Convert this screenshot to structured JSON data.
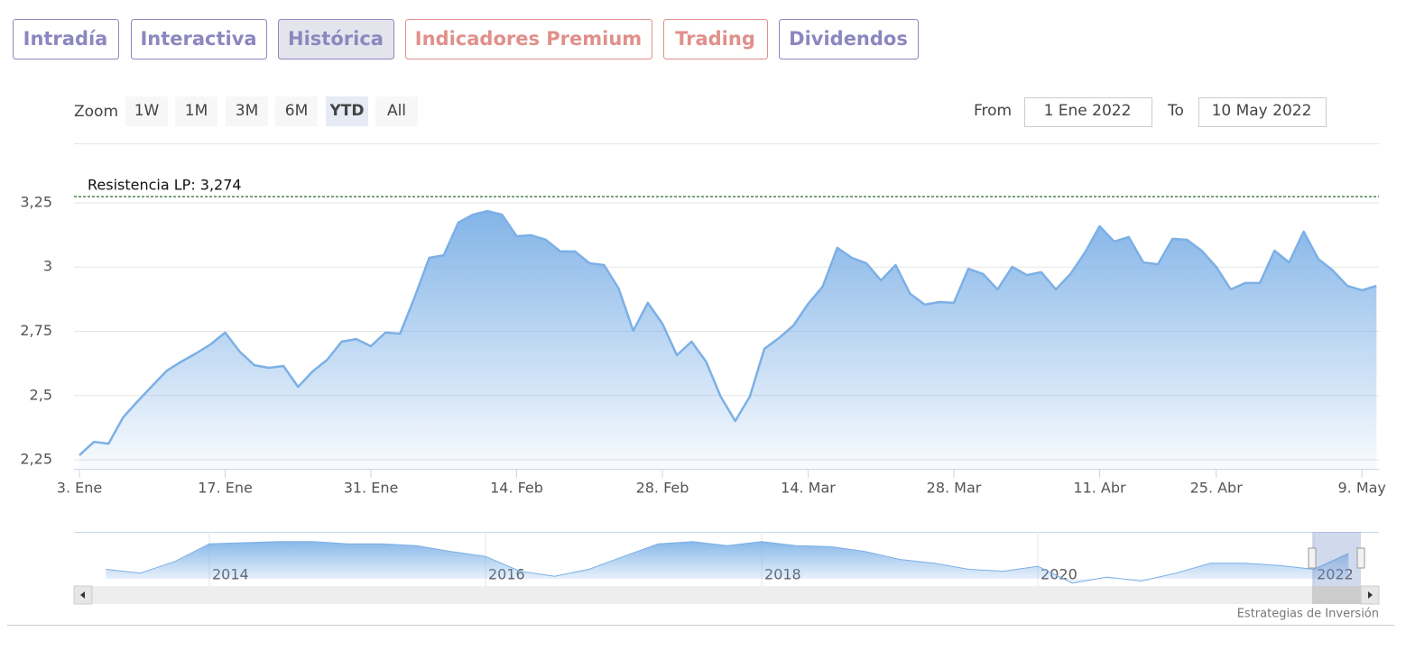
{
  "tabs": [
    {
      "label": "Intradía",
      "color": "#8c87bf"
    },
    {
      "label": "Interactiva",
      "color": "#8c87bf"
    },
    {
      "label": "Histórica",
      "color": "#8c87bf"
    },
    {
      "label": "Indicadores Premium",
      "color": "#e0908b"
    },
    {
      "label": "Trading",
      "color": "#e0908b"
    },
    {
      "label": "Dividendos",
      "color": "#8c87bf"
    }
  ],
  "active_tab": 2,
  "zoom": {
    "label": "Zoom",
    "buttons": [
      "1W",
      "1M",
      "3M",
      "6M",
      "YTD",
      "All"
    ],
    "active": 4
  },
  "range": {
    "from_label": "From",
    "from": "1 Ene 2022",
    "to_label": "To",
    "to": "10 May 2022"
  },
  "credit": "Estrategias de Inversión",
  "chart_data": [
    {
      "type": "area",
      "color": "#7cb0e6",
      "grid": true,
      "categories": [
        "3. Ene",
        null,
        null,
        null,
        null,
        null,
        null,
        null,
        null,
        null,
        "17. Ene",
        null,
        null,
        null,
        null,
        null,
        null,
        null,
        null,
        null,
        "31. Ene",
        null,
        null,
        null,
        null,
        null,
        null,
        null,
        null,
        null,
        "14. Feb",
        null,
        null,
        null,
        null,
        null,
        null,
        null,
        null,
        null,
        "28. Feb",
        null,
        null,
        null,
        null,
        null,
        null,
        null,
        null,
        null,
        "14. Mar",
        null,
        null,
        null,
        null,
        null,
        null,
        null,
        null,
        null,
        "28. Mar",
        null,
        null,
        null,
        null,
        null,
        null,
        null,
        null,
        null,
        "11. Abr",
        null,
        null,
        null,
        null,
        null,
        null,
        null,
        "25. Abr",
        null,
        null,
        null,
        null,
        null,
        null,
        null,
        null,
        null,
        "9. May",
        null
      ],
      "values": [
        2.268,
        2.32,
        2.313,
        2.415,
        2.478,
        2.538,
        2.597,
        2.632,
        2.664,
        2.699,
        2.745,
        2.671,
        2.618,
        2.608,
        2.615,
        2.534,
        2.594,
        2.639,
        2.71,
        2.72,
        2.692,
        2.745,
        2.741,
        2.882,
        3.036,
        3.046,
        3.173,
        3.204,
        3.218,
        3.204,
        3.12,
        3.124,
        3.106,
        3.061,
        3.061,
        3.015,
        3.008,
        2.917,
        2.752,
        2.861,
        2.78,
        2.657,
        2.71,
        2.632,
        2.496,
        2.401,
        2.496,
        2.682,
        2.724,
        2.773,
        2.857,
        2.924,
        3.075,
        3.036,
        3.015,
        2.948,
        3.008,
        2.896,
        2.854,
        2.864,
        2.861,
        2.994,
        2.973,
        2.913,
        3.001,
        2.969,
        2.98,
        2.913,
        2.973,
        3.057,
        3.159,
        3.099,
        3.117,
        3.018,
        3.011,
        3.11,
        3.106,
        3.064,
        3.001,
        2.913,
        2.938,
        2.938,
        3.064,
        3.018,
        3.138,
        3.032,
        2.987,
        2.927,
        2.91,
        2.927
      ],
      "ylim": [
        2.215,
        3.478
      ],
      "yticks": [
        {
          "value": 2.25,
          "label": "2,25"
        },
        {
          "value": 2.5,
          "label": "2,5"
        },
        {
          "value": 2.75,
          "label": "2,75"
        },
        3,
        {
          "value": 3.25,
          "label": "3,25"
        }
      ],
      "resistance": {
        "label": "Resistencia LP: 3,274",
        "value": 3.274,
        "color": "#2e6b2e"
      }
    },
    {
      "type": "area",
      "color": "#7cb0e6",
      "x": [
        2013.25,
        2013.5,
        2013.75,
        2014,
        2014.25,
        2014.5,
        2014.75,
        2015,
        2015.25,
        2015.5,
        2015.75,
        2016,
        2016.25,
        2016.5,
        2016.75,
        2017,
        2017.25,
        2017.5,
        2017.75,
        2018,
        2018.25,
        2018.5,
        2018.75,
        2019,
        2019.25,
        2019.5,
        2019.75,
        2020,
        2020.25,
        2020.5,
        2020.75,
        2021,
        2021.25,
        2021.5,
        2021.75,
        2022,
        2022.25
      ],
      "values": [
        2.4,
        2.22,
        2.78,
        3.63,
        3.68,
        3.73,
        3.73,
        3.63,
        3.63,
        3.54,
        3.26,
        3.02,
        2.31,
        2.07,
        2.4,
        3.02,
        3.63,
        3.73,
        3.54,
        3.73,
        3.54,
        3.49,
        3.26,
        2.88,
        2.69,
        2.4,
        2.31,
        2.55,
        1.74,
        2.03,
        1.84,
        2.22,
        2.69,
        2.69,
        2.59,
        2.4,
        3.16
      ],
      "xlim": [
        2013.02,
        2022.47
      ],
      "ylim": [
        1.6,
        4.2
      ],
      "xticks": [
        2014,
        2016,
        2018,
        2020,
        2022
      ]
    }
  ]
}
